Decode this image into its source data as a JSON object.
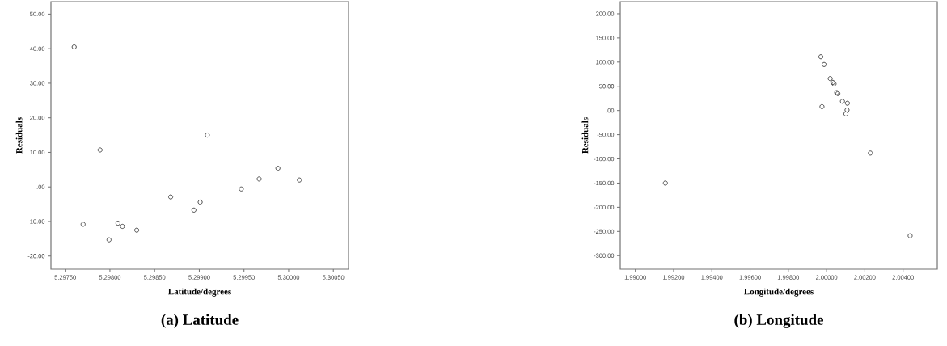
{
  "chart_data": [
    {
      "type": "scatter",
      "xlabel": "Latitude/degrees",
      "ylabel": "Residuals",
      "annotations": [
        "(a) Latitude"
      ],
      "marker": "circle",
      "grid": false,
      "x": [
        5.2976,
        5.2977,
        5.29789,
        5.29799,
        5.29809,
        5.29814,
        5.2983,
        5.29868,
        5.29894,
        5.29901,
        5.29909,
        5.29947,
        5.29967,
        5.29988,
        5.30012
      ],
      "series": [
        {
          "color": "#3a3a3a",
          "values": [
            40.5,
            -10.8,
            10.7,
            -15.3,
            -10.5,
            -11.4,
            -12.5,
            -2.9,
            -6.7,
            -4.4,
            15.0,
            -0.6,
            2.3,
            5.4,
            2.0
          ]
        }
      ],
      "xlim": [
        5.29734,
        5.30067
      ],
      "ylim": [
        -23.8,
        53.6
      ],
      "xticks": [
        {
          "value": 5.2975,
          "label": "5.29750"
        },
        {
          "value": 5.298,
          "label": "5.29800"
        },
        {
          "value": 5.2985,
          "label": "5.29850"
        },
        {
          "value": 5.299,
          "label": "5.29900"
        },
        {
          "value": 5.2995,
          "label": "5.29950"
        },
        {
          "value": 5.3,
          "label": "5.30000"
        },
        {
          "value": 5.3005,
          "label": "5.30050"
        }
      ],
      "yticks": [
        {
          "value": -20,
          "label": "-20.00"
        },
        {
          "value": -10,
          "label": "-10.00"
        },
        {
          "value": 0,
          "label": ".00"
        },
        {
          "value": 10,
          "label": "10.00"
        },
        {
          "value": 20,
          "label": "20.00"
        },
        {
          "value": 30,
          "label": "30.00"
        },
        {
          "value": 40,
          "label": "40.00"
        },
        {
          "value": 50,
          "label": "50.00"
        }
      ]
    },
    {
      "type": "scatter",
      "xlabel": "Longitude/degrees",
      "ylabel": "Residuals",
      "annotations": [
        "(b) Longitude"
      ],
      "marker": "circle",
      "grid": false,
      "x": [
        1.99157,
        1.9997,
        1.99987,
        1.99976,
        2.00019,
        2.00033,
        2.00039,
        2.00053,
        2.00059,
        2.00083,
        2.00109,
        2.00107,
        2.00101,
        2.00229,
        2.00437
      ],
      "series": [
        {
          "color": "#3a3a3a",
          "values": [
            -150,
            111,
            95,
            8,
            66,
            58,
            55,
            37,
            35,
            19,
            15,
            1,
            -7,
            -88,
            -259
          ]
        }
      ],
      "xlim": [
        1.98921,
        2.00579
      ],
      "ylim": [
        -328,
        225
      ],
      "xticks": [
        {
          "value": 1.99,
          "label": "1.99000"
        },
        {
          "value": 1.992,
          "label": "1.99200"
        },
        {
          "value": 1.994,
          "label": "1.99400"
        },
        {
          "value": 1.996,
          "label": "1.99600"
        },
        {
          "value": 1.998,
          "label": "1.99800"
        },
        {
          "value": 2.0,
          "label": "2.00000"
        },
        {
          "value": 2.002,
          "label": "2.00200"
        },
        {
          "value": 2.004,
          "label": "2.00400"
        }
      ],
      "yticks": [
        {
          "value": -300,
          "label": "-300.00"
        },
        {
          "value": -250,
          "label": "-250.00"
        },
        {
          "value": -200,
          "label": "-200.00"
        },
        {
          "value": -150,
          "label": "-150.00"
        },
        {
          "value": -100,
          "label": "-100.00"
        },
        {
          "value": -50,
          "label": "-50.00"
        },
        {
          "value": 0,
          "label": ".00"
        },
        {
          "value": 50,
          "label": "50.00"
        },
        {
          "value": 100,
          "label": "100.00"
        },
        {
          "value": 150,
          "label": "150.00"
        },
        {
          "value": 200,
          "label": "200.00"
        }
      ]
    }
  ]
}
